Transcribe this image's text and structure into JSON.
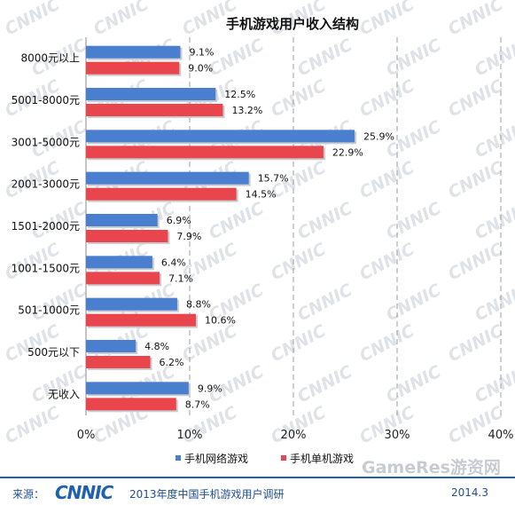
{
  "chart_data": {
    "type": "bar",
    "orientation": "horizontal",
    "title": "手机游戏用户收入结构",
    "categories": [
      "8000元以上",
      "5001-8000元",
      "3001-5000元",
      "2001-3000元",
      "1501-2000元",
      "1001-1500元",
      "501-1000元",
      "500元以下",
      "无收入"
    ],
    "series": [
      {
        "name": "手机网络游戏",
        "color": "#4a7fcf",
        "values": [
          9.1,
          12.5,
          25.9,
          15.7,
          6.9,
          6.4,
          8.8,
          4.8,
          9.9
        ],
        "labels": [
          "9.1%",
          "12.5%",
          "25.9%",
          "15.7%",
          "6.9%",
          "6.4%",
          "8.8%",
          "4.8%",
          "9.9%"
        ]
      },
      {
        "name": "手机单机游戏",
        "color": "#e8464c",
        "values": [
          9.0,
          13.2,
          22.9,
          14.5,
          7.9,
          7.1,
          10.6,
          6.2,
          8.7
        ],
        "labels": [
          "9.0%",
          "13.2%",
          "22.9%",
          "14.5%",
          "7.9%",
          "7.1%",
          "10.6%",
          "6.2%",
          "8.7%"
        ]
      }
    ],
    "xlim": [
      0,
      40
    ],
    "xticks": [
      "0%",
      "10%",
      "20%",
      "30%",
      "40%"
    ],
    "grid": "vertical-dashed",
    "legend_position": "bottom"
  },
  "watermark": {
    "logo": "CNNIC",
    "site": "GameRes游资网"
  },
  "footer": {
    "source_label": "来源：",
    "logo": "CNNIC",
    "report": "2013年度中国手机游戏用户调研",
    "date": "2014.3"
  }
}
